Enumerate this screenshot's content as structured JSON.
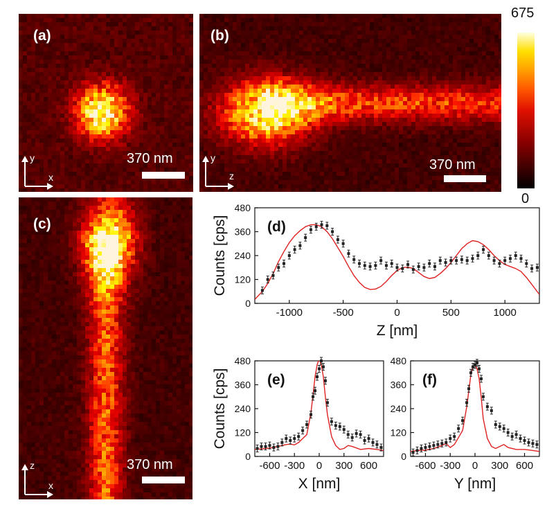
{
  "images": {
    "a": {
      "label": "(a)",
      "scale": "370 nm",
      "axis_v": "y",
      "axis_h": "x"
    },
    "b": {
      "label": "(b)",
      "scale": "370 nm",
      "axis_v": "y",
      "axis_h": "z"
    },
    "c": {
      "label": "(c)",
      "scale": "370 nm",
      "axis_v": "z",
      "axis_h": "x"
    }
  },
  "colorbar": {
    "max_label": "675",
    "min_label": "0",
    "max": 675,
    "min": 0
  },
  "colors": {
    "data": "#222222",
    "fit": "#e02020"
  },
  "chart_data": [
    {
      "type": "scatter",
      "panel_label": "(d)",
      "xlabel": "Z [nm]",
      "ylabel": "Counts [cps]",
      "xlim": [
        -1320,
        1320
      ],
      "ylim": [
        0,
        480
      ],
      "xticks": [
        -1000,
        -500,
        0,
        500,
        1000
      ],
      "yticks": [
        0,
        120,
        240,
        360,
        480
      ],
      "series": [
        {
          "role": "data",
          "x": [
            -1250,
            -1200,
            -1150,
            -1100,
            -1050,
            -1000,
            -950,
            -900,
            -850,
            -800,
            -750,
            -700,
            -650,
            -600,
            -550,
            -500,
            -450,
            -400,
            -350,
            -300,
            -250,
            -200,
            -150,
            -100,
            -50,
            0,
            50,
            100,
            150,
            200,
            250,
            300,
            350,
            400,
            450,
            500,
            550,
            600,
            650,
            700,
            750,
            800,
            850,
            900,
            950,
            1000,
            1050,
            1100,
            1150,
            1200,
            1250,
            1300
          ],
          "y": [
            65,
            120,
            140,
            180,
            200,
            240,
            270,
            290,
            330,
            370,
            385,
            395,
            390,
            360,
            320,
            300,
            250,
            220,
            200,
            190,
            185,
            190,
            215,
            190,
            200,
            180,
            175,
            195,
            170,
            185,
            180,
            200,
            185,
            215,
            205,
            215,
            215,
            220,
            215,
            225,
            240,
            270,
            240,
            215,
            200,
            215,
            225,
            240,
            225,
            200,
            175,
            180
          ]
        },
        {
          "role": "fit",
          "x": [
            -1320,
            -1250,
            -1200,
            -1150,
            -1100,
            -1050,
            -1000,
            -950,
            -900,
            -850,
            -800,
            -750,
            -700,
            -650,
            -600,
            -550,
            -500,
            -450,
            -400,
            -350,
            -300,
            -250,
            -200,
            -150,
            -100,
            -50,
            0,
            50,
            100,
            150,
            200,
            250,
            300,
            350,
            400,
            450,
            500,
            550,
            600,
            650,
            700,
            750,
            800,
            850,
            900,
            950,
            1000,
            1050,
            1100,
            1150,
            1200,
            1250,
            1320
          ],
          "y": [
            20,
            60,
            100,
            150,
            210,
            260,
            305,
            340,
            365,
            385,
            395,
            395,
            385,
            360,
            325,
            280,
            235,
            185,
            140,
            105,
            80,
            70,
            72,
            85,
            110,
            140,
            165,
            180,
            182,
            175,
            155,
            135,
            125,
            130,
            150,
            175,
            205,
            240,
            275,
            300,
            315,
            310,
            295,
            270,
            240,
            215,
            195,
            185,
            175,
            160,
            130,
            95,
            45
          ]
        }
      ]
    },
    {
      "type": "scatter",
      "panel_label": "(e)",
      "xlabel": "X [nm]",
      "ylabel": "Counts [cps]",
      "xlim": [
        -780,
        780
      ],
      "ylim": [
        0,
        480
      ],
      "xticks": [
        -600,
        -300,
        0,
        300,
        600
      ],
      "yticks": [
        0,
        120,
        240,
        360,
        480
      ],
      "series": [
        {
          "role": "data",
          "x": [
            -750,
            -700,
            -650,
            -600,
            -550,
            -500,
            -450,
            -400,
            -350,
            -300,
            -250,
            -200,
            -150,
            -100,
            -75,
            -50,
            -25,
            0,
            25,
            50,
            75,
            100,
            150,
            200,
            250,
            300,
            350,
            400,
            450,
            500,
            550,
            600,
            650,
            700,
            750
          ],
          "y": [
            40,
            50,
            50,
            55,
            45,
            50,
            70,
            90,
            80,
            90,
            100,
            130,
            160,
            210,
            300,
            330,
            400,
            440,
            480,
            450,
            380,
            270,
            175,
            155,
            150,
            135,
            110,
            95,
            115,
            110,
            80,
            90,
            70,
            60,
            45
          ]
        },
        {
          "role": "fit",
          "x": [
            -780,
            -700,
            -600,
            -500,
            -400,
            -350,
            -300,
            -250,
            -200,
            -150,
            -100,
            -75,
            -50,
            -25,
            0,
            25,
            50,
            75,
            100,
            150,
            200,
            250,
            300,
            350,
            400,
            500,
            600,
            700,
            780
          ],
          "y": [
            35,
            38,
            42,
            50,
            60,
            62,
            58,
            70,
            90,
            110,
            220,
            310,
            400,
            460,
            490,
            460,
            400,
            300,
            210,
            100,
            55,
            35,
            40,
            55,
            50,
            35,
            40,
            35,
            30
          ]
        }
      ]
    },
    {
      "type": "scatter",
      "panel_label": "(f)",
      "xlabel": "Y [nm]",
      "ylabel": "",
      "xlim": [
        -780,
        780
      ],
      "ylim": [
        0,
        480
      ],
      "xticks": [
        -600,
        -300,
        0,
        300,
        600
      ],
      "yticks": [
        0,
        120,
        240,
        360,
        480
      ],
      "series": [
        {
          "role": "data",
          "x": [
            -750,
            -700,
            -650,
            -600,
            -550,
            -500,
            -450,
            -400,
            -350,
            -300,
            -250,
            -200,
            -150,
            -100,
            -75,
            -50,
            -25,
            0,
            25,
            50,
            75,
            100,
            150,
            200,
            250,
            300,
            350,
            400,
            450,
            500,
            550,
            600,
            650,
            700,
            750
          ],
          "y": [
            20,
            30,
            40,
            45,
            50,
            55,
            60,
            65,
            70,
            90,
            100,
            140,
            180,
            270,
            340,
            420,
            450,
            460,
            470,
            440,
            390,
            300,
            250,
            230,
            160,
            150,
            140,
            120,
            100,
            110,
            90,
            80,
            70,
            65,
            60
          ]
        },
        {
          "role": "fit",
          "x": [
            -780,
            -700,
            -600,
            -500,
            -400,
            -350,
            -300,
            -250,
            -200,
            -150,
            -100,
            -75,
            -50,
            -25,
            0,
            25,
            50,
            75,
            100,
            150,
            200,
            250,
            300,
            350,
            400,
            500,
            600,
            700,
            780
          ],
          "y": [
            25,
            30,
            32,
            40,
            55,
            65,
            45,
            60,
            95,
            130,
            250,
            330,
            410,
            450,
            460,
            440,
            390,
            300,
            190,
            90,
            50,
            40,
            50,
            60,
            45,
            35,
            35,
            30,
            25
          ]
        }
      ]
    }
  ]
}
